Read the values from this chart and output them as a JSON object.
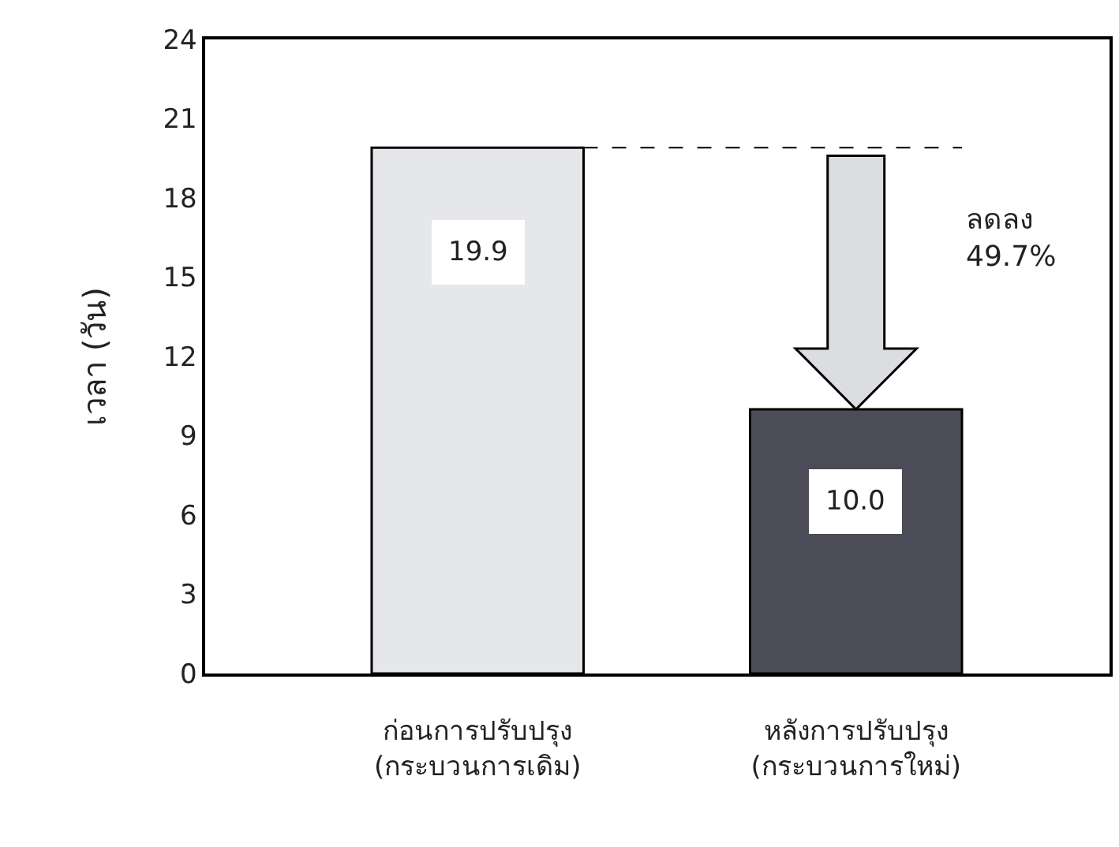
{
  "chart_data": {
    "type": "bar",
    "categories": [
      "ก่อนการปรับปรุง\n(กระบวนการเดิม)",
      "หลังการปรับปรุง\n(กระบวนการใหม่)"
    ],
    "values": [
      19.9,
      10.0
    ],
    "value_labels": [
      "19.9",
      "10.0"
    ],
    "colors": [
      "#e6e7ea",
      "#4b4c58"
    ],
    "ylabel": "เวลา (วัน)",
    "ylim": [
      0,
      24
    ],
    "yticks": [
      0,
      3,
      6,
      9,
      12,
      15,
      18,
      21,
      24
    ],
    "ref_lines": [
      {
        "axis": "y",
        "value": 19.9,
        "line_style": "dashed",
        "color": "#000000"
      }
    ],
    "annotations": [
      "ลดลง\n49.7%"
    ]
  }
}
